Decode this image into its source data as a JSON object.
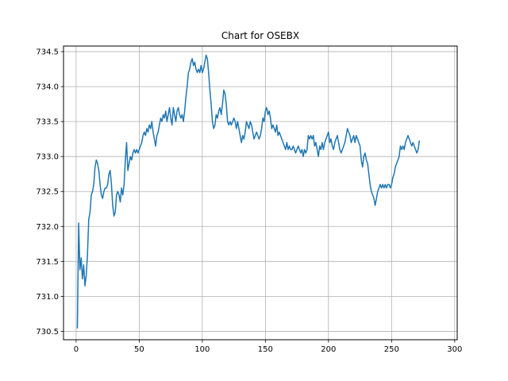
{
  "chart_data": {
    "type": "line",
    "title": "Chart for OSEBX",
    "xlabel": "",
    "ylabel": "",
    "xlim": [
      -10,
      302
    ],
    "ylim": [
      730.38,
      734.58
    ],
    "xticks": [
      0,
      50,
      100,
      150,
      200,
      250,
      300
    ],
    "xtick_labels": [
      "0",
      "50",
      "100",
      "150",
      "200",
      "250",
      "300"
    ],
    "yticks": [
      730.5,
      731.0,
      731.5,
      732.0,
      732.5,
      733.0,
      733.5,
      734.0,
      734.5
    ],
    "ytick_labels": [
      "730.5",
      "731.0",
      "731.5",
      "732.0",
      "732.5",
      "733.0",
      "733.5",
      "734.0",
      "734.5"
    ],
    "grid": true,
    "series": [
      {
        "color": "#1f77b4",
        "points": [
          [
            1,
            730.55
          ],
          [
            2,
            732.05
          ],
          [
            3,
            731.38
          ],
          [
            4,
            731.55
          ],
          [
            5,
            731.25
          ],
          [
            6,
            731.45
          ],
          [
            7,
            731.15
          ],
          [
            8,
            731.3
          ],
          [
            9,
            731.6
          ],
          [
            10,
            732.1
          ],
          [
            11,
            732.2
          ],
          [
            12,
            732.45
          ],
          [
            13,
            732.5
          ],
          [
            14,
            732.6
          ],
          [
            15,
            732.85
          ],
          [
            16,
            732.95
          ],
          [
            17,
            732.9
          ],
          [
            18,
            732.8
          ],
          [
            19,
            732.6
          ],
          [
            20,
            732.45
          ],
          [
            21,
            732.4
          ],
          [
            22,
            732.5
          ],
          [
            23,
            732.55
          ],
          [
            24,
            732.55
          ],
          [
            25,
            732.6
          ],
          [
            26,
            732.75
          ],
          [
            27,
            732.8
          ],
          [
            28,
            732.6
          ],
          [
            29,
            732.3
          ],
          [
            30,
            732.15
          ],
          [
            31,
            732.2
          ],
          [
            32,
            732.45
          ],
          [
            33,
            732.5
          ],
          [
            34,
            732.45
          ],
          [
            35,
            732.35
          ],
          [
            36,
            732.55
          ],
          [
            37,
            732.45
          ],
          [
            38,
            732.6
          ],
          [
            39,
            732.95
          ],
          [
            40,
            733.2
          ],
          [
            41,
            732.8
          ],
          [
            42,
            732.9
          ],
          [
            43,
            733.0
          ],
          [
            44,
            732.95
          ],
          [
            45,
            733.05
          ],
          [
            46,
            733.1
          ],
          [
            47,
            733.05
          ],
          [
            48,
            733.1
          ],
          [
            49,
            733.05
          ],
          [
            50,
            733.1
          ],
          [
            51,
            733.15
          ],
          [
            52,
            733.2
          ],
          [
            53,
            733.3
          ],
          [
            54,
            733.35
          ],
          [
            55,
            733.3
          ],
          [
            56,
            733.4
          ],
          [
            57,
            733.35
          ],
          [
            58,
            733.45
          ],
          [
            59,
            733.4
          ],
          [
            60,
            733.5
          ],
          [
            61,
            733.35
          ],
          [
            62,
            733.25
          ],
          [
            63,
            733.15
          ],
          [
            64,
            733.3
          ],
          [
            65,
            733.35
          ],
          [
            66,
            733.45
          ],
          [
            67,
            733.55
          ],
          [
            68,
            733.5
          ],
          [
            69,
            733.6
          ],
          [
            70,
            733.55
          ],
          [
            71,
            733.65
          ],
          [
            72,
            733.5
          ],
          [
            73,
            733.6
          ],
          [
            74,
            733.7
          ],
          [
            75,
            733.55
          ],
          [
            76,
            733.45
          ],
          [
            77,
            733.7
          ],
          [
            78,
            733.6
          ],
          [
            79,
            733.5
          ],
          [
            80,
            733.65
          ],
          [
            81,
            733.7
          ],
          [
            82,
            733.6
          ],
          [
            83,
            733.55
          ],
          [
            84,
            733.6
          ],
          [
            85,
            733.5
          ],
          [
            86,
            733.65
          ],
          [
            87,
            733.85
          ],
          [
            88,
            734.0
          ],
          [
            89,
            734.2
          ],
          [
            90,
            734.25
          ],
          [
            91,
            734.35
          ],
          [
            92,
            734.4
          ],
          [
            93,
            734.3
          ],
          [
            94,
            734.35
          ],
          [
            95,
            734.25
          ],
          [
            96,
            734.2
          ],
          [
            97,
            734.25
          ],
          [
            98,
            734.2
          ],
          [
            99,
            734.3
          ],
          [
            100,
            734.2
          ],
          [
            101,
            734.25
          ],
          [
            102,
            734.35
          ],
          [
            103,
            734.45
          ],
          [
            104,
            734.4
          ],
          [
            105,
            734.2
          ],
          [
            106,
            733.95
          ],
          [
            107,
            733.75
          ],
          [
            108,
            733.5
          ],
          [
            109,
            733.4
          ],
          [
            110,
            733.45
          ],
          [
            111,
            733.6
          ],
          [
            112,
            733.55
          ],
          [
            113,
            733.65
          ],
          [
            114,
            733.7
          ],
          [
            115,
            733.6
          ],
          [
            116,
            733.75
          ],
          [
            117,
            733.95
          ],
          [
            118,
            733.9
          ],
          [
            119,
            733.75
          ],
          [
            120,
            733.5
          ],
          [
            121,
            733.45
          ],
          [
            122,
            733.5
          ],
          [
            123,
            733.45
          ],
          [
            124,
            733.5
          ],
          [
            125,
            733.55
          ],
          [
            126,
            733.5
          ],
          [
            127,
            733.4
          ],
          [
            128,
            733.5
          ],
          [
            129,
            733.4
          ],
          [
            130,
            733.3
          ],
          [
            131,
            733.2
          ],
          [
            132,
            733.3
          ],
          [
            133,
            733.25
          ],
          [
            134,
            733.35
          ],
          [
            135,
            733.5
          ],
          [
            136,
            733.45
          ],
          [
            137,
            733.4
          ],
          [
            138,
            733.5
          ],
          [
            139,
            733.45
          ],
          [
            140,
            733.35
          ],
          [
            141,
            733.25
          ],
          [
            142,
            733.3
          ],
          [
            143,
            733.35
          ],
          [
            144,
            733.3
          ],
          [
            145,
            733.25
          ],
          [
            146,
            733.3
          ],
          [
            147,
            733.4
          ],
          [
            148,
            733.55
          ],
          [
            149,
            733.5
          ],
          [
            150,
            733.65
          ],
          [
            151,
            733.7
          ],
          [
            152,
            733.6
          ],
          [
            153,
            733.65
          ],
          [
            154,
            733.55
          ],
          [
            155,
            733.4
          ],
          [
            156,
            733.45
          ],
          [
            157,
            733.4
          ],
          [
            158,
            733.35
          ],
          [
            159,
            733.45
          ],
          [
            160,
            733.3
          ],
          [
            161,
            733.35
          ],
          [
            162,
            733.3
          ],
          [
            163,
            733.25
          ],
          [
            164,
            733.2
          ],
          [
            165,
            733.15
          ],
          [
            166,
            733.1
          ],
          [
            167,
            733.2
          ],
          [
            168,
            733.1
          ],
          [
            169,
            733.15
          ],
          [
            170,
            733.1
          ],
          [
            171,
            733.1
          ],
          [
            172,
            733.15
          ],
          [
            173,
            733.1
          ],
          [
            174,
            733.05
          ],
          [
            175,
            733.1
          ],
          [
            176,
            733.15
          ],
          [
            177,
            733.1
          ],
          [
            178,
            733.05
          ],
          [
            179,
            733.1
          ],
          [
            180,
            733.0
          ],
          [
            181,
            733.1
          ],
          [
            182,
            733.05
          ],
          [
            183,
            733.1
          ],
          [
            184,
            733.3
          ],
          [
            185,
            733.25
          ],
          [
            186,
            733.3
          ],
          [
            187,
            733.25
          ],
          [
            188,
            733.3
          ],
          [
            189,
            733.15
          ],
          [
            190,
            733.2
          ],
          [
            191,
            733.1
          ],
          [
            192,
            733.0
          ],
          [
            193,
            733.15
          ],
          [
            194,
            733.1
          ],
          [
            195,
            733.2
          ],
          [
            196,
            733.1
          ],
          [
            197,
            733.2
          ],
          [
            198,
            733.25
          ],
          [
            199,
            733.3
          ],
          [
            200,
            733.35
          ],
          [
            201,
            733.2
          ],
          [
            202,
            733.25
          ],
          [
            203,
            733.15
          ],
          [
            204,
            733.1
          ],
          [
            205,
            733.2
          ],
          [
            206,
            733.25
          ],
          [
            207,
            733.3
          ],
          [
            208,
            733.2
          ],
          [
            209,
            733.1
          ],
          [
            210,
            733.05
          ],
          [
            211,
            733.1
          ],
          [
            212,
            733.15
          ],
          [
            213,
            733.2
          ],
          [
            214,
            733.3
          ],
          [
            215,
            733.4
          ],
          [
            216,
            733.35
          ],
          [
            217,
            733.3
          ],
          [
            218,
            733.2
          ],
          [
            219,
            733.25
          ],
          [
            220,
            733.3
          ],
          [
            221,
            733.2
          ],
          [
            222,
            733.3
          ],
          [
            223,
            733.25
          ],
          [
            224,
            733.2
          ],
          [
            225,
            733.15
          ],
          [
            226,
            732.95
          ],
          [
            227,
            732.85
          ],
          [
            228,
            733.0
          ],
          [
            229,
            733.05
          ],
          [
            230,
            732.95
          ],
          [
            231,
            732.9
          ],
          [
            232,
            732.75
          ],
          [
            233,
            732.6
          ],
          [
            234,
            732.5
          ],
          [
            235,
            732.45
          ],
          [
            236,
            732.4
          ],
          [
            237,
            732.3
          ],
          [
            238,
            732.4
          ],
          [
            239,
            732.5
          ],
          [
            240,
            732.55
          ],
          [
            241,
            732.6
          ],
          [
            242,
            732.55
          ],
          [
            243,
            732.6
          ],
          [
            244,
            732.55
          ],
          [
            245,
            732.6
          ],
          [
            246,
            732.55
          ],
          [
            247,
            732.6
          ],
          [
            248,
            732.6
          ],
          [
            249,
            732.55
          ],
          [
            250,
            732.6
          ],
          [
            251,
            732.7
          ],
          [
            252,
            732.75
          ],
          [
            253,
            732.85
          ],
          [
            254,
            732.9
          ],
          [
            255,
            732.95
          ],
          [
            256,
            733.0
          ],
          [
            257,
            733.15
          ],
          [
            258,
            733.1
          ],
          [
            259,
            733.15
          ],
          [
            260,
            733.1
          ],
          [
            261,
            733.2
          ],
          [
            262,
            733.25
          ],
          [
            263,
            733.3
          ],
          [
            264,
            733.25
          ],
          [
            265,
            733.2
          ],
          [
            266,
            733.15
          ],
          [
            267,
            733.2
          ],
          [
            268,
            733.15
          ],
          [
            269,
            733.1
          ],
          [
            270,
            733.05
          ],
          [
            271,
            733.1
          ],
          [
            272,
            733.22
          ]
        ]
      }
    ]
  }
}
